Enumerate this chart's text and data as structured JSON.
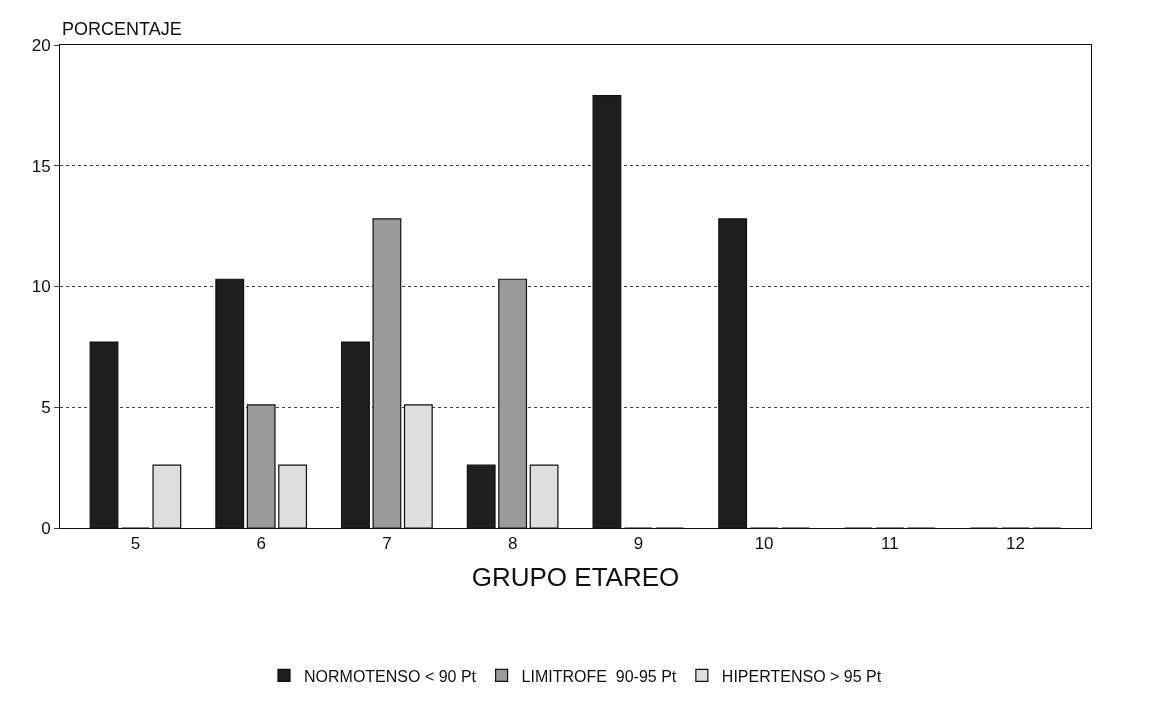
{
  "chart_data": {
    "type": "bar",
    "ylabel": "PORCENTAJE",
    "xlabel": "GRUPO ETAREO",
    "categories": [
      "5",
      "6",
      "7",
      "8",
      "9",
      "10",
      "11",
      "12"
    ],
    "series": [
      {
        "name": "NORMOTENSO < 90 Pt",
        "color": "#1e1e1e",
        "values": [
          7.7,
          10.3,
          7.7,
          2.6,
          17.9,
          12.8,
          0,
          0
        ]
      },
      {
        "name": "LIMITROFE  90-95 Pt",
        "color": "#9a9a9a",
        "values": [
          0,
          5.1,
          12.8,
          10.3,
          0,
          0,
          0,
          0
        ]
      },
      {
        "name": "HIPERTENSO > 95 Pt",
        "color": "#dedede",
        "values": [
          2.6,
          2.6,
          5.1,
          2.6,
          0,
          0,
          0,
          0
        ]
      }
    ],
    "ylim": [
      0,
      20
    ],
    "yticks": [
      0,
      5,
      10,
      15,
      20
    ],
    "grid": "y",
    "legend": "bottom"
  }
}
